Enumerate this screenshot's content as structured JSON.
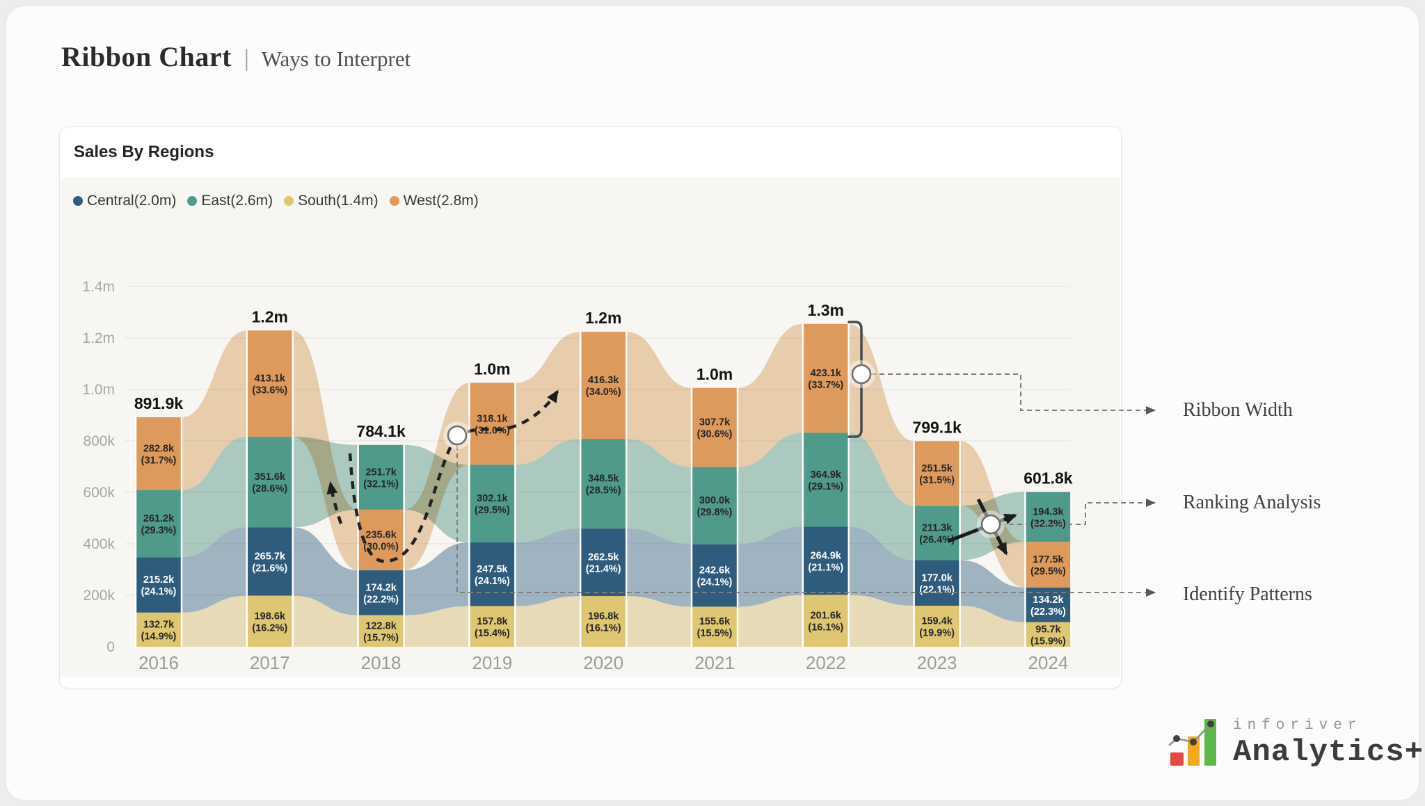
{
  "page": {
    "title": "Ribbon Chart",
    "separator": "|",
    "subtitle": "Ways to Interpret"
  },
  "card": {
    "title": "Sales By Regions"
  },
  "legend": [
    {
      "label": "Central(2.0m)",
      "color": "#2F5C7D"
    },
    {
      "label": "East(2.6m)",
      "color": "#4F9A8B"
    },
    {
      "label": "South(1.4m)",
      "color": "#DFC672"
    },
    {
      "label": "West(2.8m)",
      "color": "#DE9A5C"
    }
  ],
  "series_styles": {
    "Central": {
      "color": "#2F5C7D",
      "ribbon": "#9FB6C8",
      "label_color": "#ffffff"
    },
    "East": {
      "color": "#4F9A8B",
      "ribbon": "#AECFC6",
      "label_color": "#262626"
    },
    "South": {
      "color": "#DFC672",
      "ribbon": "#EDE2BC",
      "label_color": "#262626"
    },
    "West": {
      "color": "#DE9A5C",
      "ribbon": "#F0D3B2",
      "label_color": "#262626"
    }
  },
  "chart_data": {
    "type": "ribbon",
    "title": "Sales By Regions",
    "unit": "k",
    "grid": true,
    "legend_position": "top-left",
    "y_axis": {
      "ticks": [
        "1.4m",
        "1.2m",
        "1.0m",
        "800k",
        "600k",
        "400k",
        "200k",
        "0"
      ],
      "tick_values": [
        1400,
        1200,
        1000,
        800,
        600,
        400,
        200,
        0
      ],
      "range": [
        0,
        1400
      ]
    },
    "years": [
      "2016",
      "2017",
      "2018",
      "2019",
      "2020",
      "2021",
      "2022",
      "2023",
      "2024"
    ],
    "columns": [
      {
        "year": "2016",
        "total_label": "891.9k",
        "segments": [
          {
            "series": "West",
            "value": 282.8,
            "label": "282.8k",
            "pct": "(31.7%)"
          },
          {
            "series": "East",
            "value": 261.2,
            "label": "261.2k",
            "pct": "(29.3%)"
          },
          {
            "series": "Central",
            "value": 215.2,
            "label": "215.2k",
            "pct": "(24.1%)"
          },
          {
            "series": "South",
            "value": 132.7,
            "label": "132.7k",
            "pct": "(14.9%)"
          }
        ]
      },
      {
        "year": "2017",
        "total_label": "1.2m",
        "segments": [
          {
            "series": "West",
            "value": 413.1,
            "label": "413.1k",
            "pct": "(33.6%)"
          },
          {
            "series": "East",
            "value": 351.6,
            "label": "351.6k",
            "pct": "(28.6%)"
          },
          {
            "series": "Central",
            "value": 265.7,
            "label": "265.7k",
            "pct": "(21.6%)"
          },
          {
            "series": "South",
            "value": 198.6,
            "label": "198.6k",
            "pct": "(16.2%)"
          }
        ]
      },
      {
        "year": "2018",
        "total_label": "784.1k",
        "segments": [
          {
            "series": "East",
            "value": 251.7,
            "label": "251.7k",
            "pct": "(32.1%)"
          },
          {
            "series": "West",
            "value": 235.6,
            "label": "235.6k",
            "pct": "(30.0%)"
          },
          {
            "series": "Central",
            "value": 174.2,
            "label": "174.2k",
            "pct": "(22.2%)"
          },
          {
            "series": "South",
            "value": 122.8,
            "label": "122.8k",
            "pct": "(15.7%)"
          }
        ]
      },
      {
        "year": "2019",
        "total_label": "1.0m",
        "segments": [
          {
            "series": "West",
            "value": 318.1,
            "label": "318.1k",
            "pct": "(31.0%)"
          },
          {
            "series": "East",
            "value": 302.1,
            "label": "302.1k",
            "pct": "(29.5%)"
          },
          {
            "series": "Central",
            "value": 247.5,
            "label": "247.5k",
            "pct": "(24.1%)"
          },
          {
            "series": "South",
            "value": 157.8,
            "label": "157.8k",
            "pct": "(15.4%)"
          }
        ]
      },
      {
        "year": "2020",
        "total_label": "1.2m",
        "segments": [
          {
            "series": "West",
            "value": 416.3,
            "label": "416.3k",
            "pct": "(34.0%)"
          },
          {
            "series": "East",
            "value": 348.5,
            "label": "348.5k",
            "pct": "(28.5%)"
          },
          {
            "series": "Central",
            "value": 262.5,
            "label": "262.5k",
            "pct": "(21.4%)"
          },
          {
            "series": "South",
            "value": 196.8,
            "label": "196.8k",
            "pct": "(16.1%)"
          }
        ]
      },
      {
        "year": "2021",
        "total_label": "1.0m",
        "segments": [
          {
            "series": "West",
            "value": 307.7,
            "label": "307.7k",
            "pct": "(30.6%)"
          },
          {
            "series": "East",
            "value": 300.0,
            "label": "300.0k",
            "pct": "(29.8%)"
          },
          {
            "series": "Central",
            "value": 242.6,
            "label": "242.6k",
            "pct": "(24.1%)"
          },
          {
            "series": "South",
            "value": 155.6,
            "label": "155.6k",
            "pct": "(15.5%)"
          }
        ]
      },
      {
        "year": "2022",
        "total_label": "1.3m",
        "segments": [
          {
            "series": "West",
            "value": 423.1,
            "label": "423.1k",
            "pct": "(33.7%)"
          },
          {
            "series": "East",
            "value": 364.9,
            "label": "364.9k",
            "pct": "(29.1%)"
          },
          {
            "series": "Central",
            "value": 264.9,
            "label": "264.9k",
            "pct": "(21.1%)"
          },
          {
            "series": "South",
            "value": 201.6,
            "label": "201.6k",
            "pct": "(16.1%)"
          }
        ]
      },
      {
        "year": "2023",
        "total_label": "799.1k",
        "segments": [
          {
            "series": "West",
            "value": 251.5,
            "label": "251.5k",
            "pct": "(31.5%)"
          },
          {
            "series": "East",
            "value": 211.3,
            "label": "211.3k",
            "pct": "(26.4%)"
          },
          {
            "series": "Central",
            "value": 177.0,
            "label": "177.0k",
            "pct": "(22.1%)"
          },
          {
            "series": "South",
            "value": 159.4,
            "label": "159.4k",
            "pct": "(19.9%)"
          }
        ]
      },
      {
        "year": "2024",
        "total_label": "601.8k",
        "segments": [
          {
            "series": "East",
            "value": 194.3,
            "label": "194.3k",
            "pct": "(32.3%)"
          },
          {
            "series": "West",
            "value": 177.5,
            "label": "177.5k",
            "pct": "(29.5%)"
          },
          {
            "series": "Central",
            "value": 134.2,
            "label": "134.2k",
            "pct": "(22.3%)"
          },
          {
            "series": "South",
            "value": 95.7,
            "label": "95.7k",
            "pct": "(15.9%)"
          }
        ]
      }
    ]
  },
  "annotations": {
    "ribbon_width": "Ribbon Width",
    "ranking_analysis": "Ranking Analysis",
    "identify_patterns": "Identify Patterns"
  },
  "logo": {
    "name": "inforiver",
    "product": "Analytics+"
  }
}
